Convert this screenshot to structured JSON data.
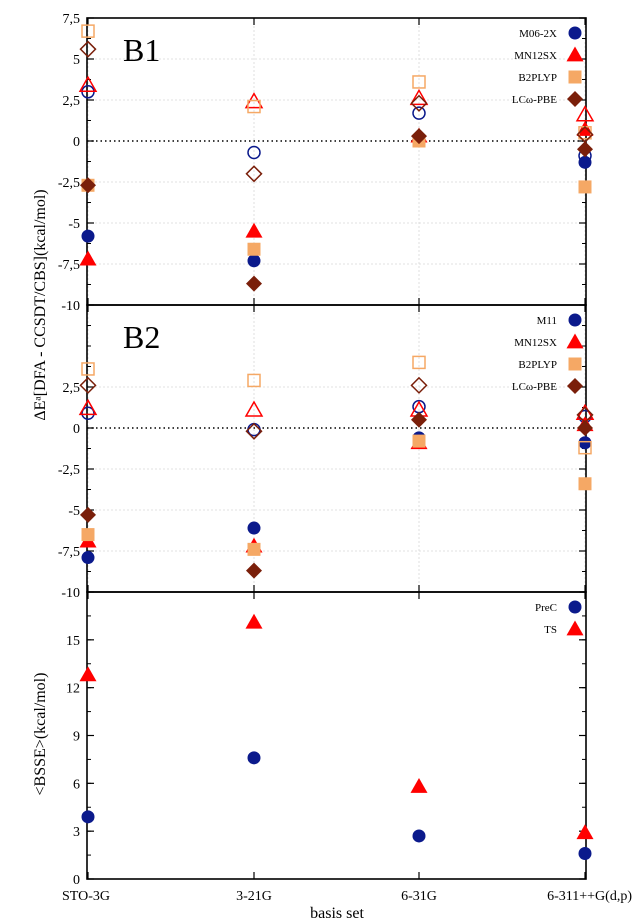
{
  "figure": {
    "x_categories": [
      "STO-3G",
      "3-21G",
      "6-31G",
      "6-311++G(d,p)"
    ],
    "x_axis_label": "basis set",
    "shared_y_label_top": "ΔEᵃ[DFA - CCSDT/CBS](kcal/mol)",
    "y_label_bottom": "<BSSE>(kcal/mol)"
  },
  "colors": {
    "navy": "#0b1a8c",
    "red": "#ff0000",
    "orange": "#f5a865",
    "brown": "#7a1f0a"
  },
  "chart_data": [
    {
      "type": "scatter",
      "panel_label": "B1",
      "categories": [
        "STO-3G",
        "3-21G",
        "6-31G",
        "6-311++G(d,p)"
      ],
      "ylim": [
        -10,
        7.5
      ],
      "yticks": [
        -10,
        -7.5,
        -5,
        -2.5,
        0,
        2.5,
        5,
        7.5
      ],
      "ytick_labels": [
        "-10",
        "-7,5",
        "-5",
        "-2,5",
        "0",
        "2,5",
        "5",
        "7,5"
      ],
      "zero_line": true,
      "grid": true,
      "legend_position": "top-right",
      "series": [
        {
          "name": "M06-2X",
          "marker": "circle",
          "color": "#0b1a8c",
          "filled": [
            -5.8,
            -7.3,
            0.2,
            -1.3
          ],
          "hollow": [
            3.0,
            -0.7,
            1.7,
            -0.9
          ]
        },
        {
          "name": "MN12SX",
          "marker": "triangle",
          "color": "#ff0000",
          "filled": [
            -7.2,
            -5.5,
            0.3,
            0.7
          ],
          "hollow": [
            3.4,
            2.4,
            2.6,
            1.6
          ]
        },
        {
          "name": "B2PLYP",
          "marker": "square",
          "color": "#f5a865",
          "filled": [
            -2.7,
            -6.6,
            0.0,
            -2.8
          ],
          "hollow": [
            6.7,
            2.1,
            3.6,
            0.5
          ]
        },
        {
          "name": "LCω-PBE",
          "marker": "diamond",
          "color": "#7a1f0a",
          "filled": [
            -2.7,
            -8.7,
            0.3,
            -0.5
          ],
          "hollow": [
            5.6,
            -2.0,
            2.3,
            0.4
          ]
        }
      ]
    },
    {
      "type": "scatter",
      "panel_label": "B2",
      "categories": [
        "STO-3G",
        "3-21G",
        "6-31G",
        "6-311++G(d,p)"
      ],
      "ylim": [
        -10,
        7.5
      ],
      "yticks": [
        -10,
        -7.5,
        -5,
        -2.5,
        0,
        2.5
      ],
      "ytick_labels": [
        "-10",
        "-7,5",
        "-5",
        "-2,5",
        "0",
        "2,5"
      ],
      "zero_line": true,
      "grid": true,
      "legend_position": "top-right",
      "series": [
        {
          "name": "M11",
          "marker": "circle",
          "color": "#0b1a8c",
          "filled": [
            -7.9,
            -6.1,
            -0.6,
            -0.9
          ],
          "hollow": [
            0.9,
            -0.1,
            1.3,
            0.7
          ]
        },
        {
          "name": "MN12SX",
          "marker": "triangle",
          "color": "#ff0000",
          "filled": [
            -6.9,
            -7.2,
            -0.9,
            0.2
          ],
          "hollow": [
            1.2,
            1.1,
            1.1,
            0.9
          ]
        },
        {
          "name": "B2PLYP",
          "marker": "square",
          "color": "#f5a865",
          "filled": [
            -6.5,
            -7.4,
            -0.8,
            -3.4
          ],
          "hollow": [
            3.6,
            2.9,
            4.0,
            -1.2
          ]
        },
        {
          "name": "LCω-PBE",
          "marker": "diamond",
          "color": "#7a1f0a",
          "filled": [
            -5.3,
            -8.7,
            0.5,
            0.0
          ],
          "hollow": [
            2.6,
            -0.2,
            2.6,
            0.8
          ]
        }
      ]
    },
    {
      "type": "scatter",
      "panel_label": "",
      "categories": [
        "STO-3G",
        "3-21G",
        "6-31G",
        "6-311++G(d,p)"
      ],
      "ylim": [
        0,
        18
      ],
      "yticks": [
        0,
        3,
        6,
        9,
        12,
        15
      ],
      "ytick_labels": [
        "0",
        "3",
        "6",
        "9",
        "12",
        "15"
      ],
      "zero_line": false,
      "grid": false,
      "legend_position": "top-right",
      "series": [
        {
          "name": "PreC",
          "marker": "circle",
          "color": "#0b1a8c",
          "filled": [
            3.9,
            7.6,
            2.7,
            1.6
          ],
          "hollow": []
        },
        {
          "name": "TS",
          "marker": "triangle",
          "color": "#ff0000",
          "filled": [
            12.8,
            16.1,
            5.8,
            2.9
          ],
          "hollow": []
        }
      ]
    }
  ]
}
